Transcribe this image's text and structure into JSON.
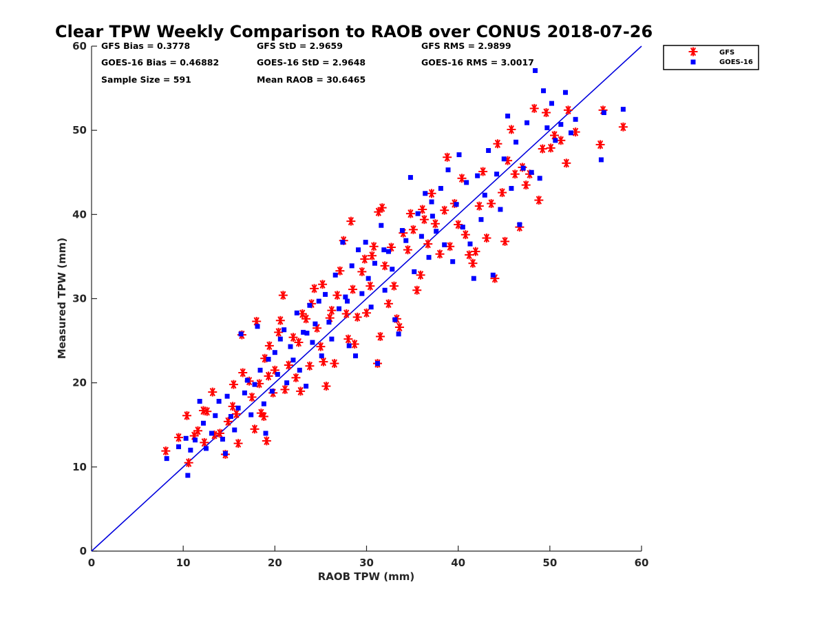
{
  "chart_data": {
    "type": "scatter",
    "title": "Clear TPW Weekly Comparison to RAOB over CONUS 2018-07-26",
    "xlabel": "RAOB TPW (mm)",
    "ylabel": "Measured TPW (mm)",
    "xlim": [
      0,
      60
    ],
    "ylim": [
      0,
      60
    ],
    "xticks": [
      "0",
      "10",
      "20",
      "30",
      "40",
      "50",
      "60"
    ],
    "yticks": [
      "0",
      "10",
      "20",
      "30",
      "40",
      "50",
      "60"
    ],
    "grid": false,
    "legend_position": "top-right-outside",
    "stats": {
      "gfs_bias": "GFS Bias = 0.3778",
      "goes_bias": "GOES-16 Bias = 0.46882",
      "sample_size": "Sample Size = 591",
      "gfs_std": "GFS StD = 2.9659",
      "goes_std": "GOES-16 StD = 2.9648",
      "mean_raob": "Mean RAOB = 30.6465",
      "gfs_rms": "GFS RMS = 2.9899",
      "goes_rms": "GOES-16 RMS = 3.0017"
    },
    "reference_line": {
      "type": "1:1",
      "color": "#0000dd",
      "x": [
        0,
        60
      ],
      "y": [
        0,
        60
      ]
    },
    "series": [
      {
        "name": "GFS",
        "marker": "asterisk",
        "color": "#ff0000",
        "points": [
          [
            8.1,
            11.9
          ],
          [
            9.5,
            13.5
          ],
          [
            10.4,
            16.1
          ],
          [
            10.6,
            10.5
          ],
          [
            11.2,
            13.7
          ],
          [
            11.6,
            14.3
          ],
          [
            12.2,
            16.7
          ],
          [
            12.3,
            12.9
          ],
          [
            12.6,
            16.6
          ],
          [
            13.2,
            18.9
          ],
          [
            13.4,
            13.8
          ],
          [
            14.0,
            14.0
          ],
          [
            14.6,
            11.5
          ],
          [
            14.9,
            15.4
          ],
          [
            15.4,
            17.2
          ],
          [
            15.5,
            19.8
          ],
          [
            15.8,
            16.3
          ],
          [
            16.0,
            12.8
          ],
          [
            16.4,
            25.7
          ],
          [
            16.5,
            21.2
          ],
          [
            17.2,
            20.2
          ],
          [
            17.5,
            18.3
          ],
          [
            17.8,
            14.5
          ],
          [
            18.0,
            27.3
          ],
          [
            18.3,
            19.9
          ],
          [
            18.5,
            16.4
          ],
          [
            18.8,
            16.0
          ],
          [
            18.9,
            22.9
          ],
          [
            19.1,
            13.1
          ],
          [
            19.3,
            20.8
          ],
          [
            19.4,
            24.4
          ],
          [
            19.8,
            18.8
          ],
          [
            20.0,
            21.5
          ],
          [
            20.4,
            26.0
          ],
          [
            20.6,
            27.4
          ],
          [
            20.9,
            30.4
          ],
          [
            21.1,
            19.2
          ],
          [
            21.5,
            22.1
          ],
          [
            22.0,
            25.4
          ],
          [
            22.3,
            20.6
          ],
          [
            22.6,
            24.8
          ],
          [
            22.8,
            19.0
          ],
          [
            23.0,
            28.2
          ],
          [
            23.4,
            27.6
          ],
          [
            23.8,
            22.0
          ],
          [
            24.0,
            29.4
          ],
          [
            24.3,
            31.2
          ],
          [
            24.6,
            26.5
          ],
          [
            25.0,
            24.3
          ],
          [
            25.2,
            31.7
          ],
          [
            25.3,
            22.5
          ],
          [
            25.6,
            19.6
          ],
          [
            26.0,
            27.7
          ],
          [
            26.5,
            22.3
          ],
          [
            26.8,
            30.4
          ],
          [
            27.1,
            33.3
          ],
          [
            27.5,
            36.9
          ],
          [
            27.8,
            28.2
          ],
          [
            28.0,
            25.2
          ],
          [
            28.3,
            39.2
          ],
          [
            28.5,
            31.1
          ],
          [
            28.7,
            24.6
          ],
          [
            29.0,
            27.8
          ],
          [
            29.5,
            33.2
          ],
          [
            29.8,
            34.7
          ],
          [
            30.0,
            28.3
          ],
          [
            30.4,
            31.5
          ],
          [
            30.8,
            36.2
          ],
          [
            31.2,
            22.3
          ],
          [
            31.3,
            40.3
          ],
          [
            31.5,
            25.5
          ],
          [
            31.7,
            40.8
          ],
          [
            32.0,
            33.9
          ],
          [
            32.4,
            29.4
          ],
          [
            32.7,
            36.1
          ],
          [
            33.0,
            31.5
          ],
          [
            33.3,
            27.6
          ],
          [
            33.6,
            26.6
          ],
          [
            34.0,
            37.8
          ],
          [
            34.5,
            35.8
          ],
          [
            34.8,
            40.1
          ],
          [
            35.1,
            38.2
          ],
          [
            35.5,
            31.0
          ],
          [
            35.9,
            32.8
          ],
          [
            36.3,
            39.4
          ],
          [
            36.7,
            36.5
          ],
          [
            37.1,
            42.5
          ],
          [
            37.5,
            38.9
          ],
          [
            38.0,
            35.3
          ],
          [
            38.5,
            40.5
          ],
          [
            38.8,
            46.8
          ],
          [
            39.1,
            36.2
          ],
          [
            39.6,
            41.3
          ],
          [
            40.0,
            38.8
          ],
          [
            40.4,
            44.3
          ],
          [
            40.8,
            37.6
          ],
          [
            41.2,
            35.2
          ],
          [
            41.6,
            34.2
          ],
          [
            41.9,
            35.6
          ],
          [
            42.3,
            41.0
          ],
          [
            42.7,
            45.1
          ],
          [
            43.1,
            37.2
          ],
          [
            43.6,
            41.3
          ],
          [
            44.0,
            32.4
          ],
          [
            44.3,
            48.4
          ],
          [
            44.8,
            42.6
          ],
          [
            45.1,
            36.8
          ],
          [
            45.4,
            46.4
          ],
          [
            45.8,
            50.1
          ],
          [
            46.2,
            44.8
          ],
          [
            46.7,
            38.5
          ],
          [
            47.0,
            45.6
          ],
          [
            47.4,
            43.5
          ],
          [
            47.8,
            44.8
          ],
          [
            48.3,
            52.6
          ],
          [
            48.8,
            41.7
          ],
          [
            49.2,
            47.8
          ],
          [
            49.6,
            52.1
          ],
          [
            50.1,
            47.9
          ],
          [
            50.5,
            49.4
          ],
          [
            51.2,
            48.8
          ],
          [
            51.8,
            46.1
          ],
          [
            52.0,
            52.4
          ],
          [
            52.8,
            49.8
          ],
          [
            55.5,
            48.3
          ],
          [
            55.8,
            52.4
          ],
          [
            58.0,
            50.4
          ],
          [
            36.1,
            40.6
          ],
          [
            30.6,
            35.1
          ],
          [
            26.2,
            28.6
          ]
        ]
      },
      {
        "name": "GOES-16",
        "marker": "square",
        "color": "#0000ff",
        "points": [
          [
            8.2,
            11.0
          ],
          [
            9.5,
            12.4
          ],
          [
            10.3,
            13.4
          ],
          [
            10.5,
            9.0
          ],
          [
            10.8,
            12.0
          ],
          [
            11.3,
            13.2
          ],
          [
            11.8,
            17.8
          ],
          [
            12.2,
            15.2
          ],
          [
            12.5,
            12.2
          ],
          [
            13.1,
            14.0
          ],
          [
            13.5,
            16.1
          ],
          [
            13.9,
            17.8
          ],
          [
            14.3,
            13.3
          ],
          [
            14.6,
            11.6
          ],
          [
            14.8,
            18.4
          ],
          [
            15.2,
            16.0
          ],
          [
            15.6,
            14.4
          ],
          [
            16.0,
            17.0
          ],
          [
            16.3,
            25.8
          ],
          [
            16.7,
            18.8
          ],
          [
            17.0,
            20.3
          ],
          [
            17.4,
            16.2
          ],
          [
            17.8,
            19.8
          ],
          [
            18.1,
            26.7
          ],
          [
            18.4,
            21.5
          ],
          [
            18.8,
            17.5
          ],
          [
            19.0,
            14.0
          ],
          [
            19.3,
            22.8
          ],
          [
            19.7,
            19.0
          ],
          [
            20.0,
            23.6
          ],
          [
            20.3,
            21.0
          ],
          [
            20.6,
            25.2
          ],
          [
            21.0,
            26.3
          ],
          [
            21.3,
            20.0
          ],
          [
            21.7,
            24.3
          ],
          [
            22.0,
            22.7
          ],
          [
            22.4,
            28.3
          ],
          [
            22.7,
            21.5
          ],
          [
            23.1,
            26.0
          ],
          [
            23.4,
            19.6
          ],
          [
            23.8,
            29.2
          ],
          [
            24.1,
            24.8
          ],
          [
            24.4,
            27.0
          ],
          [
            24.8,
            29.7
          ],
          [
            25.1,
            23.2
          ],
          [
            25.5,
            30.5
          ],
          [
            25.9,
            27.2
          ],
          [
            26.2,
            25.2
          ],
          [
            26.6,
            32.8
          ],
          [
            27.0,
            28.8
          ],
          [
            27.4,
            36.7
          ],
          [
            27.7,
            30.2
          ],
          [
            28.1,
            24.4
          ],
          [
            28.4,
            33.9
          ],
          [
            28.8,
            23.2
          ],
          [
            29.1,
            35.8
          ],
          [
            29.5,
            30.6
          ],
          [
            29.9,
            36.7
          ],
          [
            30.2,
            32.4
          ],
          [
            30.5,
            29.0
          ],
          [
            30.9,
            34.2
          ],
          [
            31.2,
            22.3
          ],
          [
            31.6,
            38.7
          ],
          [
            32.0,
            31.0
          ],
          [
            32.4,
            35.6
          ],
          [
            32.8,
            33.5
          ],
          [
            33.1,
            27.5
          ],
          [
            33.5,
            25.8
          ],
          [
            33.9,
            38.1
          ],
          [
            34.3,
            36.9
          ],
          [
            34.8,
            44.4
          ],
          [
            35.2,
            33.2
          ],
          [
            35.6,
            40.1
          ],
          [
            36.0,
            37.4
          ],
          [
            36.4,
            42.5
          ],
          [
            36.8,
            34.9
          ],
          [
            37.2,
            39.8
          ],
          [
            37.6,
            38.0
          ],
          [
            38.1,
            43.1
          ],
          [
            38.5,
            36.4
          ],
          [
            38.9,
            45.3
          ],
          [
            39.4,
            34.4
          ],
          [
            39.8,
            41.2
          ],
          [
            40.1,
            47.1
          ],
          [
            40.5,
            38.5
          ],
          [
            40.9,
            43.8
          ],
          [
            41.3,
            36.5
          ],
          [
            41.7,
            32.4
          ],
          [
            42.1,
            44.6
          ],
          [
            42.5,
            39.4
          ],
          [
            42.9,
            42.3
          ],
          [
            43.3,
            47.6
          ],
          [
            43.8,
            32.8
          ],
          [
            44.2,
            44.8
          ],
          [
            44.6,
            40.6
          ],
          [
            45.0,
            46.6
          ],
          [
            45.4,
            51.7
          ],
          [
            45.8,
            43.1
          ],
          [
            46.3,
            48.6
          ],
          [
            46.7,
            38.8
          ],
          [
            47.1,
            45.5
          ],
          [
            47.5,
            50.9
          ],
          [
            48.0,
            45.0
          ],
          [
            48.4,
            57.1
          ],
          [
            48.9,
            44.3
          ],
          [
            49.3,
            54.7
          ],
          [
            49.7,
            50.3
          ],
          [
            50.2,
            53.2
          ],
          [
            50.6,
            48.8
          ],
          [
            51.2,
            50.7
          ],
          [
            51.7,
            54.5
          ],
          [
            52.3,
            49.7
          ],
          [
            52.8,
            51.3
          ],
          [
            55.6,
            46.5
          ],
          [
            55.9,
            52.1
          ],
          [
            58.0,
            52.5
          ],
          [
            37.1,
            41.5
          ],
          [
            31.9,
            35.8
          ],
          [
            27.9,
            29.7
          ],
          [
            23.5,
            25.9
          ]
        ]
      }
    ]
  }
}
